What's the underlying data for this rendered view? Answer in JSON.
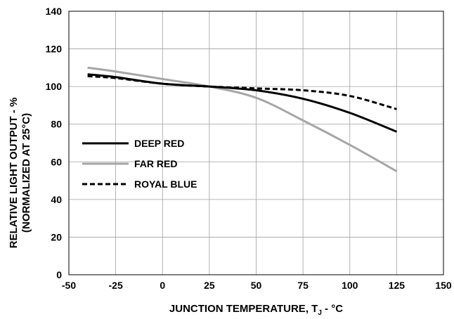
{
  "chart_data": {
    "type": "line",
    "title": "",
    "xlabel": "JUNCTION TEMPERATURE, T",
    "xlabel_subscript": "J",
    "xlabel_suffix": " - °C",
    "ylabel_line1": "RELATIVE LIGHT OUTPUT - %",
    "ylabel_line2": "(NORMALIZED AT 25°C)",
    "xlim": [
      -50,
      150
    ],
    "ylim": [
      0,
      140
    ],
    "x_ticks": [
      "-50",
      "-25",
      "0",
      "25",
      "50",
      "75",
      "100",
      "125",
      "150"
    ],
    "y_ticks": [
      "0",
      "20",
      "40",
      "60",
      "80",
      "100",
      "120",
      "140"
    ],
    "grid": true,
    "legend_position": "left",
    "series": [
      {
        "name": "DEEP RED",
        "color": "#000000",
        "dash": "solid",
        "x": [
          -40,
          -25,
          0,
          25,
          50,
          75,
          100,
          125
        ],
        "y": [
          106.5,
          105,
          101.5,
          100,
          98,
          93.5,
          86,
          76
        ]
      },
      {
        "name": "FAR RED",
        "color": "#a6a6a6",
        "dash": "solid",
        "x": [
          -40,
          -25,
          0,
          25,
          50,
          75,
          100,
          125
        ],
        "y": [
          110,
          108,
          104,
          100,
          94,
          82,
          69,
          55
        ]
      },
      {
        "name": "ROYAL BLUE",
        "color": "#000000",
        "dash": "dashed",
        "x": [
          -40,
          -25,
          0,
          25,
          50,
          75,
          100,
          125
        ],
        "y": [
          105.5,
          104.5,
          101.5,
          100,
          99,
          98,
          95,
          88
        ]
      }
    ]
  }
}
